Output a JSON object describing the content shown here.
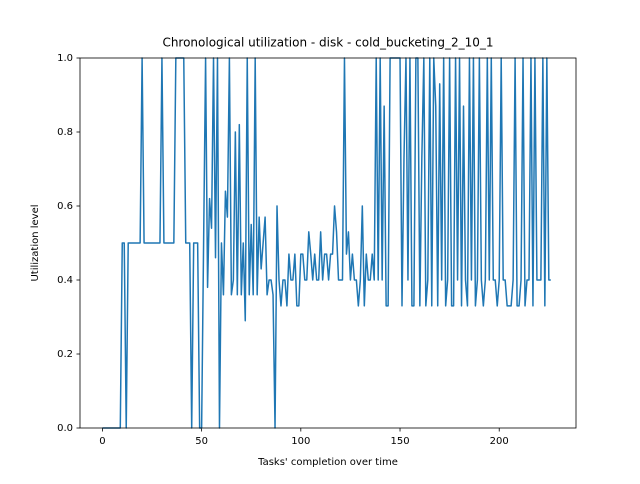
{
  "chart_data": {
    "type": "line",
    "title": "Chronological utilization - disk - cold_bucketing_2_10_1",
    "x_label": "Tasks' completion over time",
    "y_label": "Utilization level",
    "color": "#1f77b4",
    "xlim": [
      -11.3,
      238.7
    ],
    "ylim": [
      0,
      1
    ],
    "xticks": [
      0,
      50,
      100,
      150,
      200
    ],
    "yticks": [
      {
        "value": 0,
        "label": "0.0"
      },
      0.2,
      0.4,
      0.6,
      0.8,
      {
        "value": 1,
        "label": "1.0"
      }
    ],
    "x": [
      0,
      9,
      10,
      11,
      12,
      13,
      19,
      20,
      21,
      29,
      30,
      31,
      36,
      37,
      41,
      42,
      44,
      45,
      46,
      48,
      49,
      50,
      51,
      52,
      53,
      54,
      55,
      56,
      57,
      58,
      59,
      60,
      61,
      62,
      63,
      64,
      65,
      66,
      67,
      68,
      69,
      70,
      71,
      72,
      73,
      74,
      75,
      76,
      77,
      78,
      79,
      80,
      81,
      82,
      83,
      84,
      85,
      86,
      87,
      88,
      89,
      90,
      91,
      92,
      93,
      94,
      95,
      96,
      97,
      98,
      99,
      100,
      101,
      102,
      103,
      104,
      105,
      106,
      107,
      108,
      109,
      110,
      111,
      112,
      113,
      114,
      115,
      116,
      117,
      118,
      119,
      120,
      121,
      122,
      123,
      124,
      125,
      126,
      127,
      128,
      129,
      130,
      131,
      132,
      133,
      134,
      135,
      136,
      137,
      138,
      139,
      140,
      141,
      142,
      143,
      144,
      145,
      146,
      147,
      148,
      149,
      150,
      151,
      152,
      153,
      154,
      155,
      156,
      157,
      158,
      159,
      160,
      161,
      162,
      163,
      164,
      165,
      166,
      167,
      168,
      169,
      170,
      171,
      172,
      173,
      174,
      175,
      176,
      177,
      178,
      179,
      180,
      181,
      182,
      183,
      184,
      185,
      186,
      187,
      188,
      189,
      190,
      191,
      192,
      193,
      194,
      195,
      196,
      197,
      198,
      199,
      200,
      201,
      202,
      203,
      204,
      205,
      206,
      207,
      208,
      209,
      210,
      211,
      212,
      213,
      214,
      215,
      216,
      217,
      218,
      219,
      220,
      221,
      222,
      223,
      224,
      225,
      226
    ],
    "values": [
      0,
      0,
      0.5,
      0.5,
      0,
      0.5,
      0.5,
      1,
      0.5,
      0.5,
      1,
      0.5,
      0.5,
      1,
      1,
      0.5,
      0.5,
      0,
      0.5,
      0.5,
      0,
      0,
      0.5,
      1,
      0.38,
      0.62,
      0.54,
      1,
      0.46,
      1,
      0,
      0.5,
      0.36,
      0.64,
      0.57,
      1,
      0.36,
      0.4,
      0.8,
      0.36,
      0.82,
      0.36,
      0.5,
      0.29,
      1,
      0.36,
      0.55,
      0.36,
      1,
      0.36,
      0.57,
      0.43,
      0.5,
      0.57,
      0.36,
      0.4,
      0.4,
      0.36,
      0,
      0.6,
      0.4,
      0.33,
      0.4,
      0.4,
      0.33,
      0.47,
      0.4,
      0.4,
      0.47,
      0.33,
      0.33,
      0.47,
      0.47,
      0.4,
      0.4,
      0.53,
      0.47,
      0.4,
      0.47,
      0.4,
      0.4,
      0.53,
      0.4,
      0.47,
      0.47,
      0.4,
      0.47,
      0.47,
      0.6,
      0.53,
      0.4,
      0.4,
      0.4,
      1,
      0.47,
      0.53,
      0.4,
      0.47,
      0.4,
      0.4,
      0.33,
      0.4,
      0.6,
      0.33,
      0.47,
      0.4,
      0.4,
      0.47,
      0.4,
      1,
      0.4,
      1,
      0.4,
      0.87,
      0.33,
      0.33,
      1,
      1,
      1,
      1,
      1,
      1,
      0.33,
      0.73,
      1,
      0.4,
      1,
      0.33,
      0.33,
      1,
      1,
      0.33,
      0.73,
      1,
      0.33,
      0.4,
      1,
      0.33,
      1,
      0.87,
      0.33,
      0.93,
      0.4,
      1,
      0.33,
      0.4,
      1,
      0.33,
      0.33,
      1,
      0.4,
      1,
      0.33,
      0.87,
      0.4,
      0.33,
      1,
      0.4,
      1,
      0.33,
      0.4,
      1,
      0.4,
      0.33,
      0.4,
      1,
      0.4,
      1,
      0.4,
      0.4,
      0.33,
      0.4,
      1,
      0.4,
      0.4,
      0.33,
      0.33,
      0.33,
      0.4,
      1,
      0.33,
      0.33,
      0.4,
      1,
      0.33,
      0.4,
      0.4,
      1,
      0.33,
      1,
      0.4,
      0.4,
      0.4,
      1,
      0.33,
      1,
      0.4,
      0.4
    ]
  }
}
